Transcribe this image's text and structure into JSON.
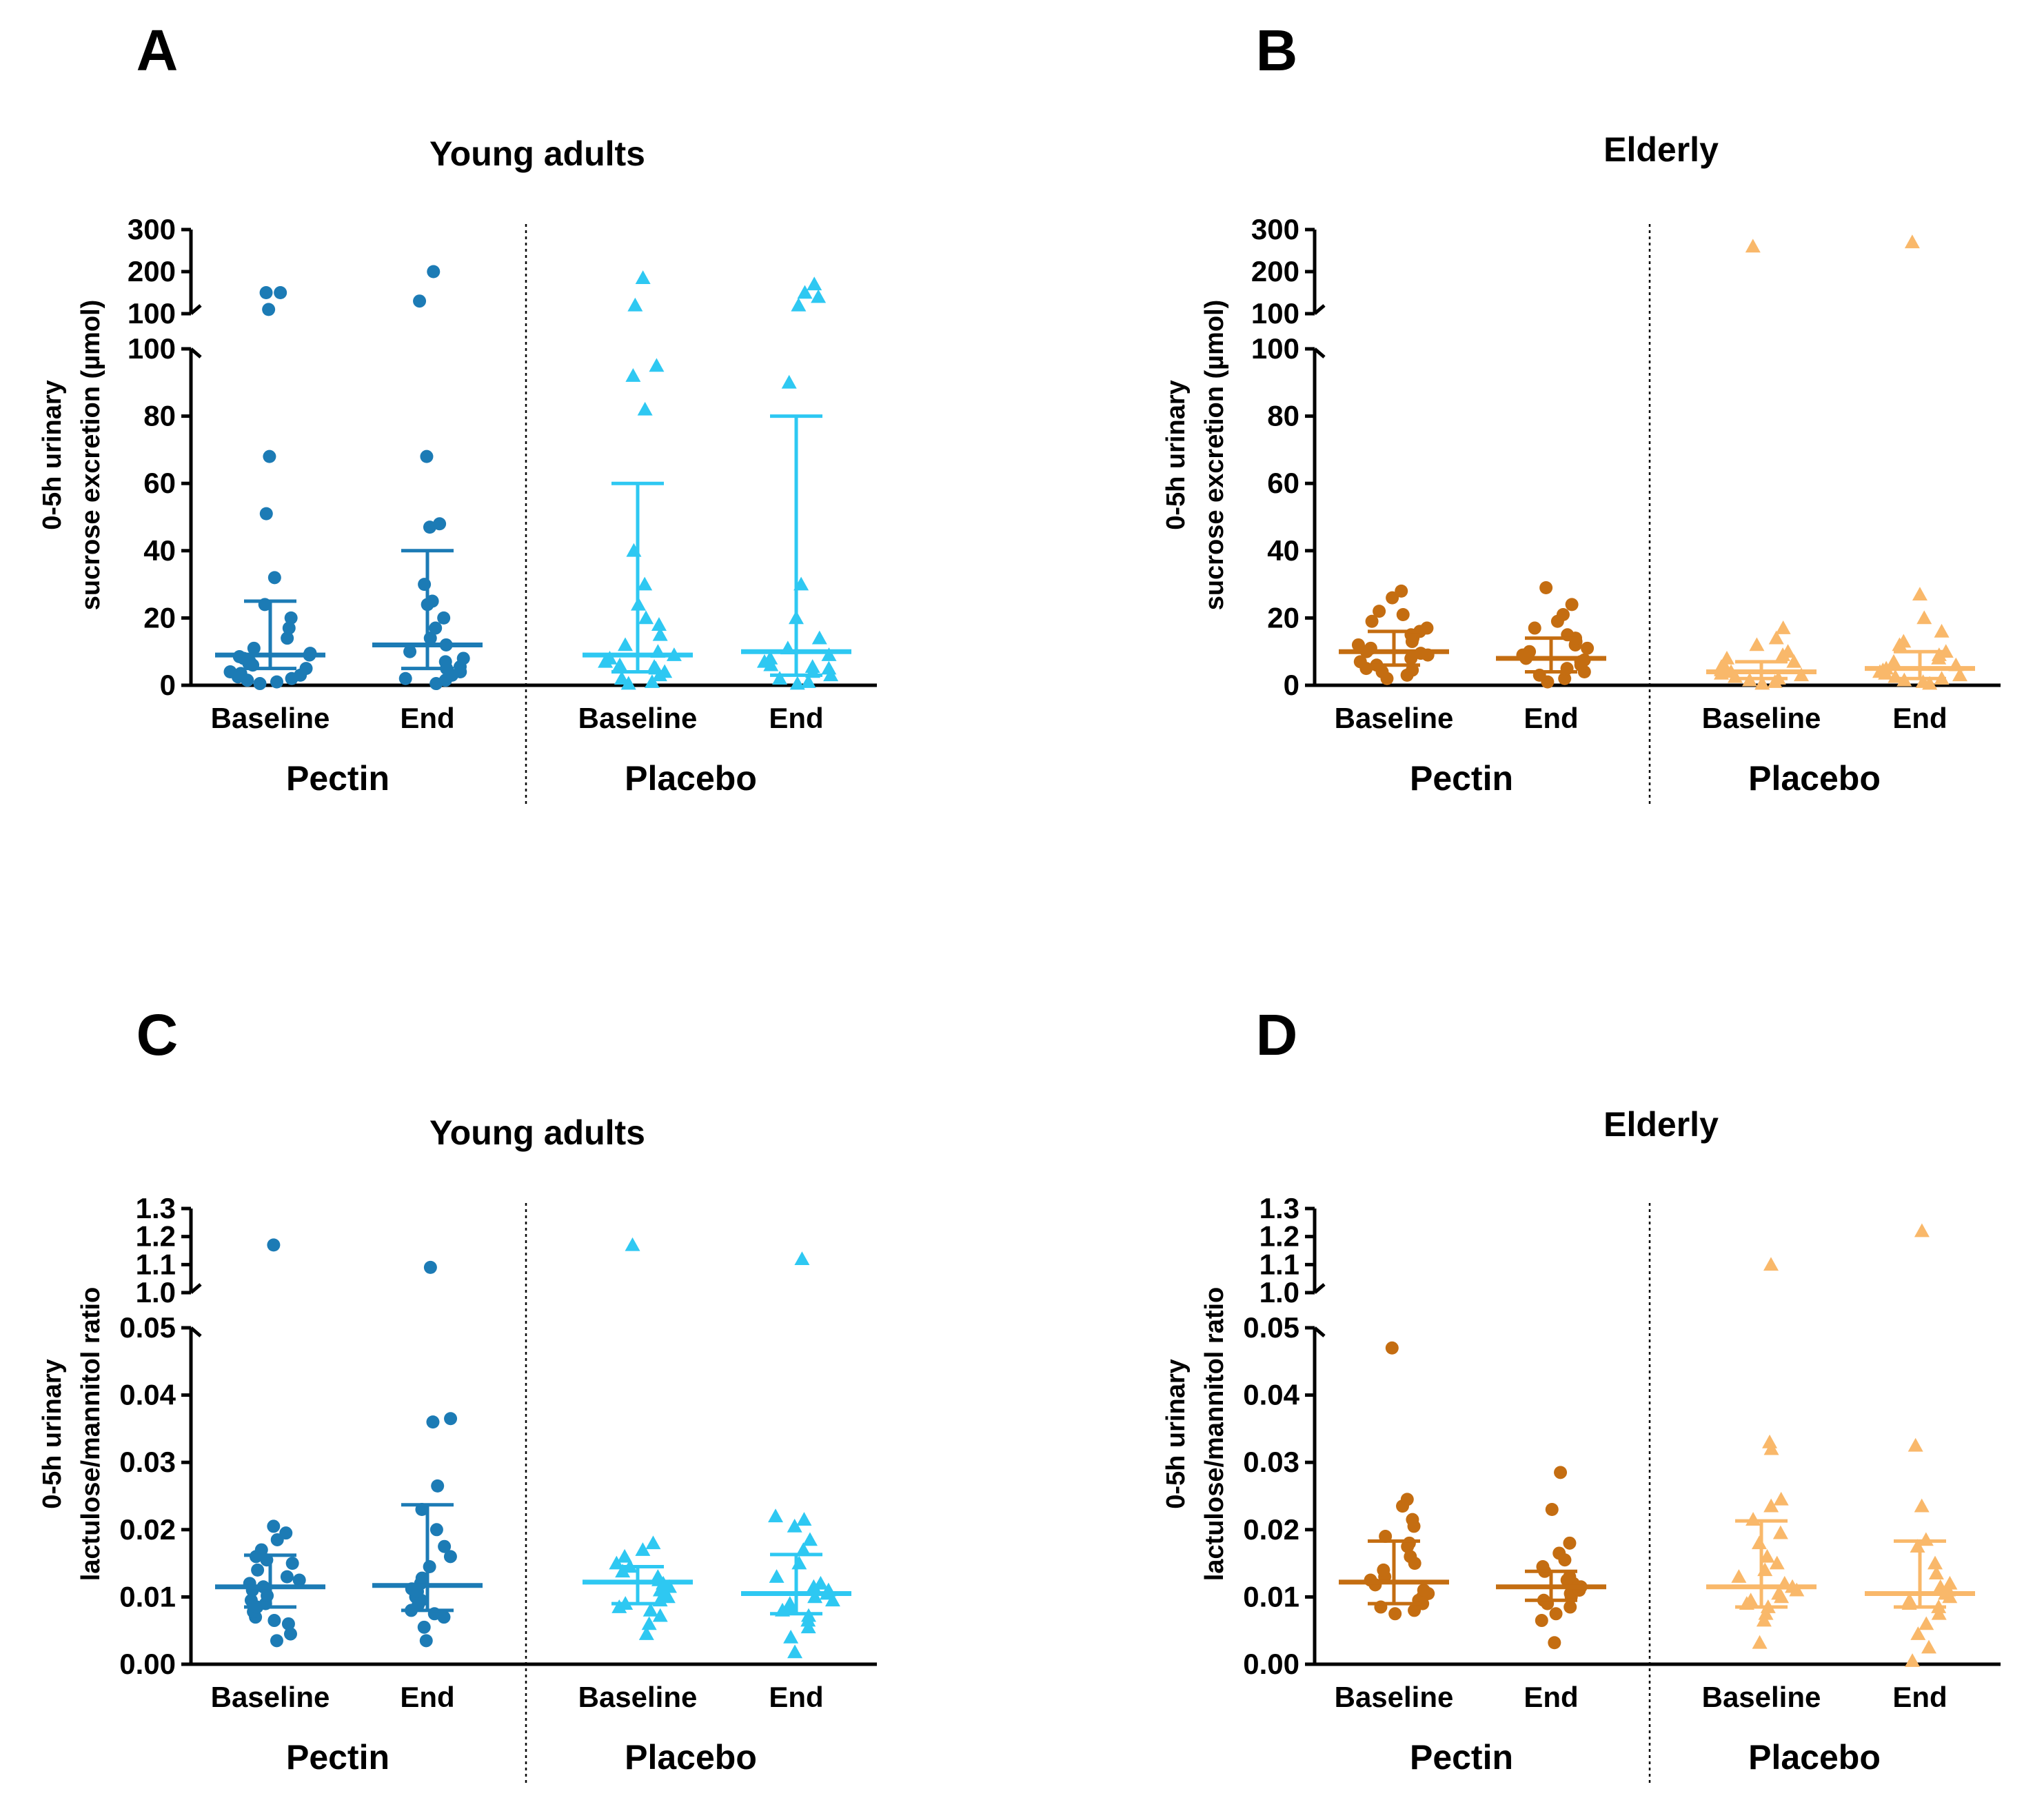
{
  "chart_data": [
    {
      "panel": "A",
      "type": "scatter",
      "title": "Young adults",
      "ylabel_lines": [
        "0-5h urinary",
        "sucrose excretion  (µmol)"
      ],
      "axis": "split",
      "lower_ylim": [
        0,
        100
      ],
      "lower_ticks": [
        "0",
        "20",
        "40",
        "60",
        "80",
        "100"
      ],
      "upper_ylim": [
        100,
        300
      ],
      "upper_ticks": [
        "100",
        "200",
        "300"
      ],
      "palette": "young",
      "groups": [
        {
          "name": "Pectin",
          "categories": [
            {
              "label": "Baseline",
              "marker": "circle",
              "color": "#1c7bb5",
              "median": 9,
              "q1": 5,
              "q3": 25,
              "values": [
                0.5,
                1,
                1.5,
                2,
                2.5,
                3,
                3.5,
                4,
                5,
                6,
                6.5,
                7,
                8,
                8.5,
                9,
                9.5,
                11,
                14,
                17,
                20,
                24,
                32,
                51,
                68,
                110,
                150,
                150
              ]
            },
            {
              "label": "End",
              "marker": "circle",
              "color": "#1c7bb5",
              "median": 12,
              "q1": 5,
              "q3": 40,
              "values": [
                0.5,
                1.5,
                2,
                3,
                4,
                5,
                5.5,
                7,
                8,
                10,
                12,
                14,
                17,
                20,
                24,
                25,
                30,
                47,
                48,
                68,
                130,
                200
              ]
            }
          ]
        },
        {
          "name": "Placebo",
          "categories": [
            {
              "label": "Baseline",
              "marker": "triangle",
              "color": "#2ec8f2",
              "median": 9,
              "q1": 4,
              "q3": 60,
              "values": [
                0.5,
                1,
                2,
                3,
                4,
                5,
                5.5,
                6,
                7,
                8,
                9,
                10,
                12,
                15,
                18,
                20,
                24,
                30,
                40,
                82,
                92,
                95,
                120,
                185
              ]
            },
            {
              "label": "End",
              "marker": "triangle",
              "color": "#2ec8f2",
              "median": 10,
              "q1": 3,
              "q3": 80,
              "values": [
                0.5,
                1,
                2,
                3,
                4,
                5,
                5.5,
                6,
                7,
                8,
                9,
                11,
                14,
                20,
                30,
                90,
                120,
                140,
                150,
                170
              ]
            }
          ]
        }
      ]
    },
    {
      "panel": "B",
      "type": "scatter",
      "title": "Elderly",
      "ylabel_lines": [
        "0-5h urinary",
        "sucrose excretion  (µmol)"
      ],
      "axis": "split",
      "lower_ylim": [
        0,
        100
      ],
      "lower_ticks": [
        "0",
        "20",
        "40",
        "60",
        "80",
        "100"
      ],
      "upper_ylim": [
        100,
        300
      ],
      "upper_ticks": [
        "100",
        "200",
        "300"
      ],
      "palette": "elderly",
      "groups": [
        {
          "name": "Pectin",
          "categories": [
            {
              "label": "Baseline",
              "marker": "circle",
              "color": "#c46d11",
              "median": 10,
              "q1": 6,
              "q3": 16,
              "values": [
                2,
                3,
                4,
                4.5,
                5,
                6,
                7,
                8,
                9,
                9.5,
                10,
                11,
                12,
                13,
                14,
                15,
                16,
                17,
                19,
                21,
                22,
                26,
                28
              ]
            },
            {
              "label": "End",
              "marker": "circle",
              "color": "#c46d11",
              "median": 8,
              "q1": 4,
              "q3": 14,
              "values": [
                1,
                2,
                3,
                4,
                5,
                6,
                7,
                7.5,
                8,
                9,
                10,
                11,
                12,
                13,
                14,
                15,
                17,
                19,
                21,
                24,
                29
              ]
            }
          ]
        },
        {
          "name": "Placebo",
          "categories": [
            {
              "label": "Baseline",
              "marker": "triangle",
              "color": "#f9b86a",
              "median": 4,
              "q1": 2,
              "q3": 7,
              "values": [
                0.5,
                1,
                1.5,
                2,
                2.5,
                3,
                3.5,
                4,
                4.5,
                5,
                5.5,
                6,
                7,
                8,
                9,
                10,
                12,
                14,
                17,
                260
              ]
            },
            {
              "label": "End",
              "marker": "triangle",
              "color": "#f9b86a",
              "median": 5,
              "q1": 2,
              "q3": 10,
              "values": [
                0.5,
                1,
                1.5,
                2,
                2.5,
                3,
                3.5,
                4,
                4.5,
                5,
                6,
                7,
                8,
                9,
                10,
                12,
                13,
                16,
                20,
                27,
                270
              ]
            }
          ]
        }
      ]
    },
    {
      "panel": "C",
      "type": "scatter",
      "title": "Young adults",
      "ylabel_lines": [
        "0-5h urinary",
        "lactulose/mannitol ratio"
      ],
      "axis": "split",
      "lower_ylim": [
        0,
        0.05
      ],
      "lower_ticks": [
        "0.00",
        "0.01",
        "0.02",
        "0.03",
        "0.04",
        "0.05"
      ],
      "upper_ylim": [
        1.0,
        1.3
      ],
      "upper_ticks": [
        "1.0",
        "1.1",
        "1.2",
        "1.3"
      ],
      "palette": "young",
      "groups": [
        {
          "name": "Pectin",
          "categories": [
            {
              "label": "Baseline",
              "marker": "circle",
              "color": "#1c7bb5",
              "median": 0.0115,
              "q1": 0.0085,
              "q3": 0.0162,
              "values": [
                0.0035,
                0.0045,
                0.006,
                0.0065,
                0.007,
                0.0078,
                0.0085,
                0.009,
                0.0095,
                0.0102,
                0.011,
                0.0115,
                0.012,
                0.0125,
                0.013,
                0.014,
                0.015,
                0.0155,
                0.016,
                0.017,
                0.0185,
                0.0195,
                0.0205,
                1.17
              ]
            },
            {
              "label": "End",
              "marker": "circle",
              "color": "#1c7bb5",
              "median": 0.0117,
              "q1": 0.008,
              "q3": 0.0237,
              "values": [
                0.0035,
                0.0055,
                0.007,
                0.0075,
                0.008,
                0.0088,
                0.0095,
                0.01,
                0.0108,
                0.0112,
                0.012,
                0.0128,
                0.0145,
                0.016,
                0.0175,
                0.02,
                0.023,
                0.0265,
                0.036,
                0.0365,
                1.09
              ]
            }
          ]
        },
        {
          "name": "Placebo",
          "categories": [
            {
              "label": "Baseline",
              "marker": "triangle",
              "color": "#2ec8f2",
              "median": 0.0122,
              "q1": 0.009,
              "q3": 0.0145,
              "values": [
                0.0045,
                0.006,
                0.0072,
                0.008,
                0.0085,
                0.009,
                0.0095,
                0.01,
                0.0105,
                0.011,
                0.0115,
                0.012,
                0.0125,
                0.013,
                0.0138,
                0.0145,
                0.015,
                0.016,
                0.017,
                0.018,
                1.17
              ]
            },
            {
              "label": "End",
              "marker": "triangle",
              "color": "#2ec8f2",
              "median": 0.0105,
              "q1": 0.0075,
              "q3": 0.0163,
              "values": [
                0.0018,
                0.004,
                0.0055,
                0.0065,
                0.0072,
                0.008,
                0.0085,
                0.009,
                0.0095,
                0.01,
                0.0105,
                0.011,
                0.0115,
                0.012,
                0.013,
                0.015,
                0.017,
                0.0185,
                0.0205,
                0.0215,
                0.022,
                1.12
              ]
            }
          ]
        }
      ]
    },
    {
      "panel": "D",
      "type": "scatter",
      "title": "Elderly",
      "ylabel_lines": [
        "0-5h urinary",
        "lactulose/mannitol ratio"
      ],
      "axis": "split",
      "lower_ylim": [
        0,
        0.05
      ],
      "lower_ticks": [
        "0.00",
        "0.01",
        "0.02",
        "0.03",
        "0.04",
        "0.05"
      ],
      "upper_ylim": [
        1.0,
        1.3
      ],
      "upper_ticks": [
        "1.0",
        "1.1",
        "1.2",
        "1.3"
      ],
      "palette": "elderly",
      "groups": [
        {
          "name": "Pectin",
          "categories": [
            {
              "label": "Baseline",
              "marker": "circle",
              "color": "#c46d11",
              "median": 0.0122,
              "q1": 0.009,
              "q3": 0.0183,
              "values": [
                0.0075,
                0.008,
                0.0085,
                0.009,
                0.0095,
                0.01,
                0.0105,
                0.011,
                0.0118,
                0.0125,
                0.013,
                0.014,
                0.015,
                0.016,
                0.0175,
                0.018,
                0.019,
                0.0205,
                0.0215,
                0.0235,
                0.0245,
                0.047
              ]
            },
            {
              "label": "End",
              "marker": "circle",
              "color": "#c46d11",
              "median": 0.0115,
              "q1": 0.0095,
              "q3": 0.0138,
              "values": [
                0.0032,
                0.0065,
                0.0075,
                0.0085,
                0.009,
                0.0095,
                0.01,
                0.0105,
                0.011,
                0.0115,
                0.012,
                0.0125,
                0.013,
                0.0138,
                0.0145,
                0.0155,
                0.0165,
                0.018,
                0.023,
                0.0285
              ]
            }
          ]
        },
        {
          "name": "Placebo",
          "categories": [
            {
              "label": "Baseline",
              "marker": "triangle",
              "color": "#f9b86a",
              "median": 0.0115,
              "q1": 0.0085,
              "q3": 0.0213,
              "values": [
                0.0032,
                0.0065,
                0.0075,
                0.0085,
                0.009,
                0.0095,
                0.01,
                0.0105,
                0.011,
                0.0115,
                0.012,
                0.013,
                0.014,
                0.015,
                0.016,
                0.018,
                0.0195,
                0.0215,
                0.0235,
                0.0245,
                0.032,
                0.033,
                1.1
              ]
            },
            {
              "label": "End",
              "marker": "triangle",
              "color": "#f9b86a",
              "median": 0.0105,
              "q1": 0.0085,
              "q3": 0.0183,
              "values": [
                0.0005,
                0.0025,
                0.0045,
                0.006,
                0.0075,
                0.0085,
                0.009,
                0.0095,
                0.01,
                0.0105,
                0.011,
                0.0115,
                0.012,
                0.0135,
                0.015,
                0.0175,
                0.0185,
                0.0235,
                0.0325,
                1.22
              ]
            }
          ]
        }
      ]
    }
  ]
}
